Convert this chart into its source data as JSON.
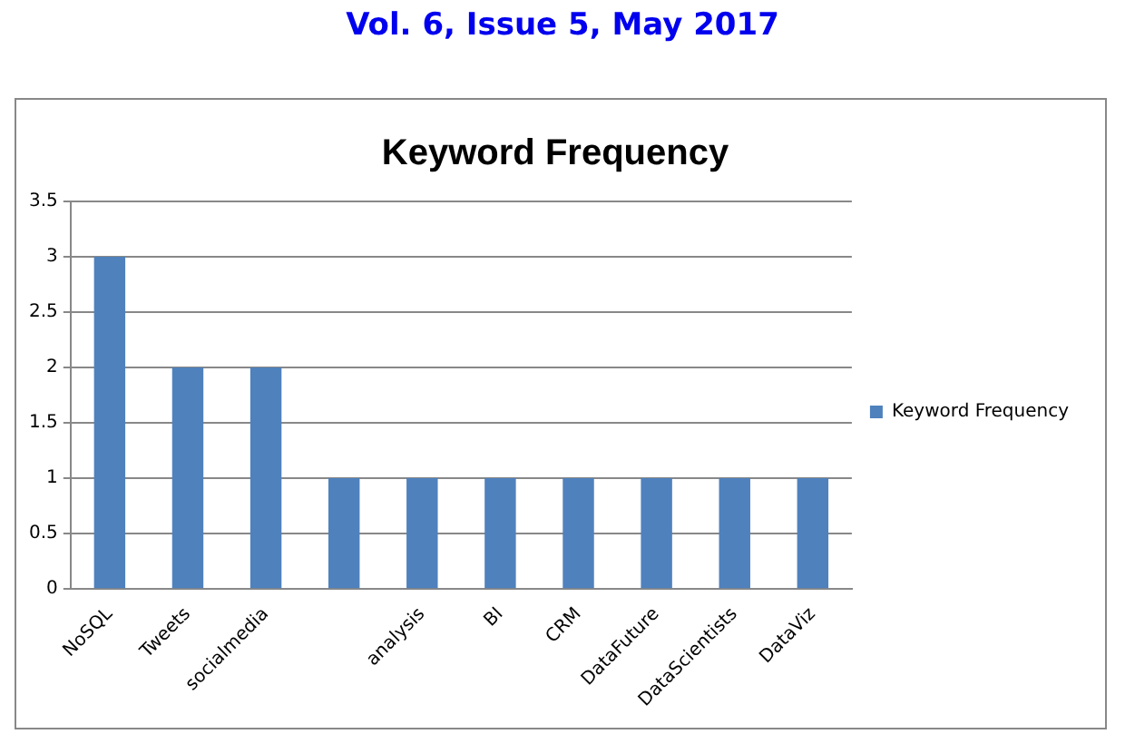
{
  "chart_data": {
    "type": "bar",
    "title": "Keyword Frequency",
    "annotations": [
      "Vol. 6, Issue 5, May 2017"
    ],
    "categories": [
      "NoSQL",
      "Tweets",
      "socialmedia",
      null,
      "analysis",
      "BI",
      "CRM",
      "DataFuture",
      "DataScientists",
      "DataViz"
    ],
    "series": [
      {
        "name": "Keyword Frequency",
        "color": "#4f81bd",
        "values": [
          3,
          2,
          2,
          1,
          1,
          1,
          1,
          1,
          1,
          1
        ]
      }
    ],
    "ylim": [
      0,
      3.5
    ],
    "yticks": [
      0,
      0.5,
      1,
      1.5,
      2,
      2.5,
      3,
      3.5
    ],
    "grid": "y",
    "legend": "right"
  }
}
